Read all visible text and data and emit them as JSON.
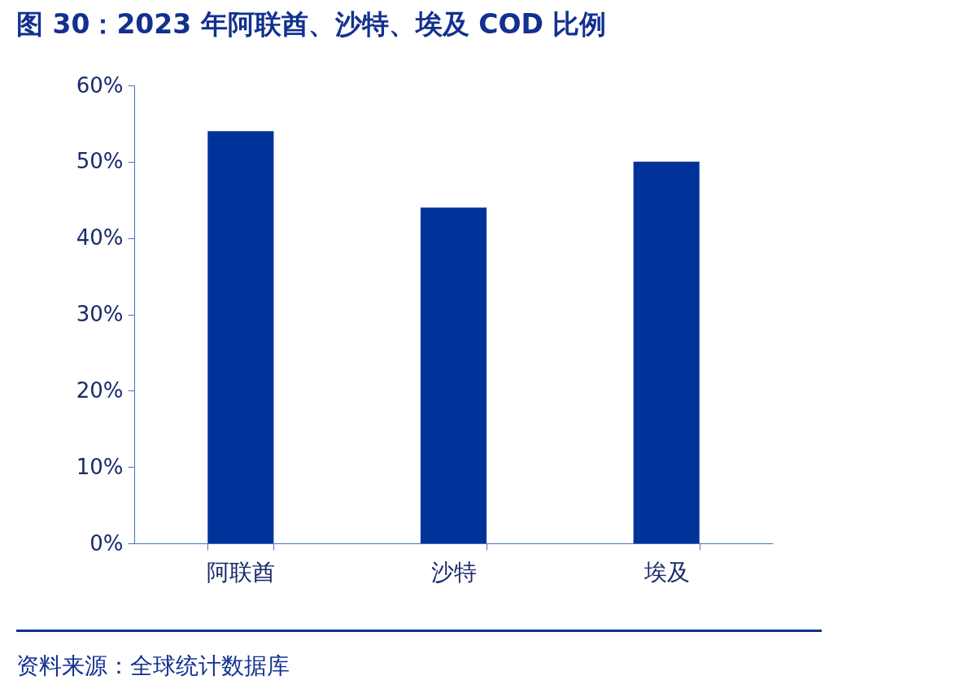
{
  "chart_data": {
    "type": "bar",
    "title": "图 30：2023 年阿联酋、沙特、埃及 COD 比例",
    "categories": [
      "阿联酋",
      "沙特",
      "埃及"
    ],
    "values": [
      54,
      44,
      50
    ],
    "color": "#003399",
    "ylim": [
      0,
      60
    ],
    "yticks": [
      {
        "value": 0,
        "label": "0%"
      },
      {
        "value": 10,
        "label": "10%"
      },
      {
        "value": 20,
        "label": "20%"
      },
      {
        "value": 30,
        "label": "30%"
      },
      {
        "value": 40,
        "label": "40%"
      },
      {
        "value": 50,
        "label": "50%"
      },
      {
        "value": 60,
        "label": "60%"
      }
    ],
    "grid": false,
    "annotations": [
      "资料来源：全球统计数据库"
    ]
  }
}
